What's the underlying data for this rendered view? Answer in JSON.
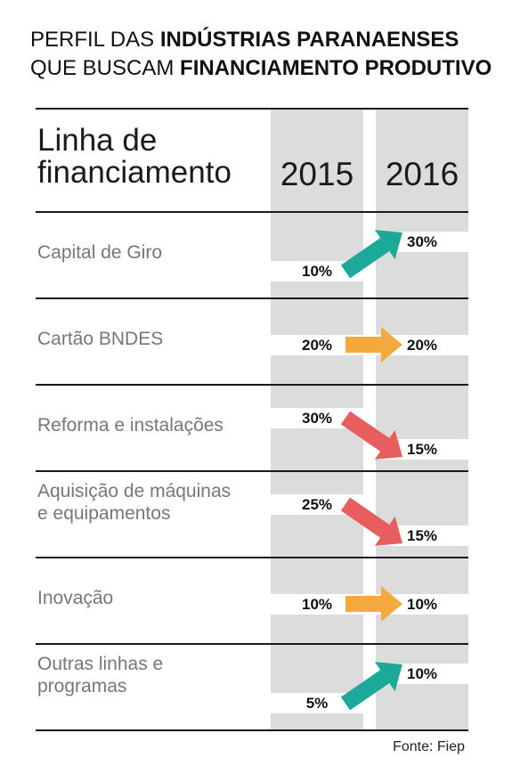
{
  "title": {
    "line1_normal": "PERFIL DAS ",
    "line1_bold": "INDÚSTRIAS PARANAENSES",
    "line2_normal": "QUE BUSCAM ",
    "line2_bold": "FINANCIAMENTO PRODUTIVO"
  },
  "colors": {
    "up": "#1ba99a",
    "flat": "#f4a93f",
    "down": "#e85d5d",
    "column_band": "#dcdcdc"
  },
  "chart_data": {
    "type": "table",
    "header_label": "Linha de\nfinanciamento",
    "years": [
      "2015",
      "2016"
    ],
    "rows": [
      {
        "label": "Capital de Giro",
        "v2015": "10%",
        "v2016": "30%",
        "trend": "up"
      },
      {
        "label": "Cartão BNDES",
        "v2015": "20%",
        "v2016": "20%",
        "trend": "flat"
      },
      {
        "label": "Reforma e instalações",
        "v2015": "30%",
        "v2016": "15%",
        "trend": "down"
      },
      {
        "label": "Aquisição de máquinas\n e equipamentos",
        "v2015": "25%",
        "v2016": "15%",
        "trend": "down"
      },
      {
        "label": "Inovação",
        "v2015": "10%",
        "v2016": "10%",
        "trend": "flat"
      },
      {
        "label": "Outras linhas e\nprogramas",
        "v2015": "5%",
        "v2016": "10%",
        "trend": "up"
      }
    ]
  },
  "source": "Fonte: Fiep"
}
